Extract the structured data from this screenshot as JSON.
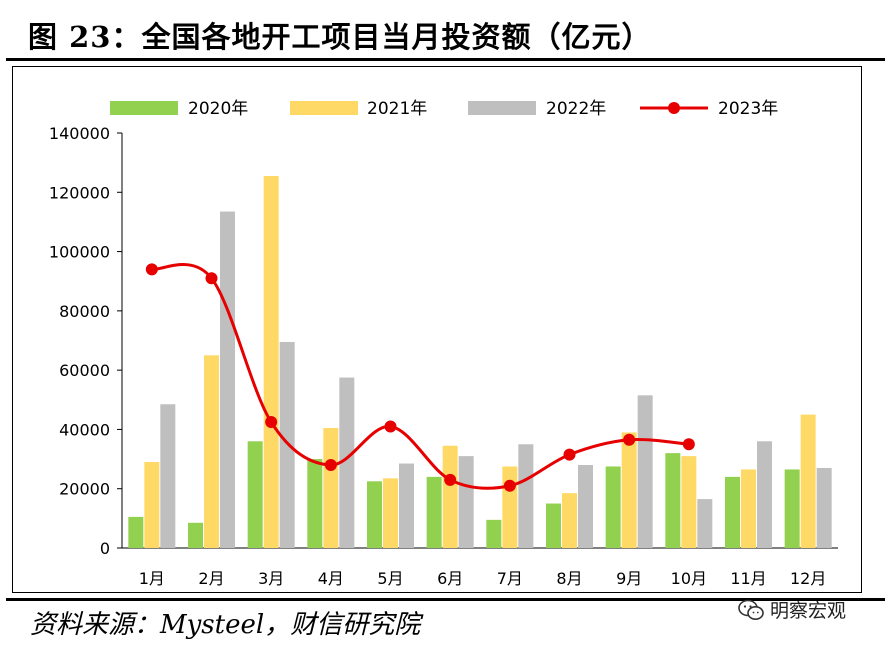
{
  "figure": {
    "title": "图 23：全国各地开工项目当月投资额（亿元）",
    "source": "资料来源：Mysteel，财信研究院",
    "watermark": "明察宏观",
    "watermark_icon": "wechat-icon"
  },
  "chart_data": {
    "type": "bar",
    "categories": [
      "1月",
      "2月",
      "3月",
      "4月",
      "5月",
      "6月",
      "7月",
      "8月",
      "9月",
      "10月",
      "11月",
      "12月"
    ],
    "ylim": [
      0,
      140000
    ],
    "yticks": [
      0,
      20000,
      40000,
      60000,
      80000,
      100000,
      120000,
      140000
    ],
    "grid": false,
    "legend_position": "top",
    "series": [
      {
        "name": "2020年",
        "type": "bar",
        "color": "#92D050",
        "values": [
          10500,
          8500,
          36000,
          30000,
          22500,
          24000,
          9500,
          15000,
          27500,
          32000,
          24000,
          26500
        ]
      },
      {
        "name": "2021年",
        "type": "bar",
        "color": "#FFD966",
        "values": [
          29000,
          65000,
          125500,
          40500,
          23500,
          34500,
          27500,
          18500,
          39000,
          31000,
          26500,
          45000
        ]
      },
      {
        "name": "2022年",
        "type": "bar",
        "color": "#BFBFBF",
        "values": [
          48500,
          113500,
          69500,
          57500,
          28500,
          31000,
          35000,
          28000,
          51500,
          16500,
          36000,
          27000
        ]
      },
      {
        "name": "2023年",
        "type": "line",
        "color": "#E60000",
        "smooth": true,
        "values": [
          94000,
          91000,
          42500,
          28000,
          41000,
          23000,
          21000,
          31500,
          36500,
          35000,
          null,
          null
        ]
      }
    ]
  }
}
